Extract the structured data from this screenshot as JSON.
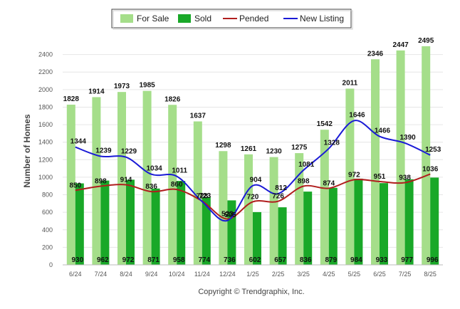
{
  "chart_data": {
    "type": "bar",
    "title": "",
    "xlabel": "",
    "ylabel": "Number of Homes",
    "ylim": [
      0,
      2600
    ],
    "yticks": [
      0,
      200,
      400,
      600,
      800,
      1000,
      1200,
      1400,
      1600,
      1800,
      2000,
      2200,
      2400
    ],
    "grid": true,
    "legend_position": "top-center",
    "categories": [
      "6/24",
      "7/24",
      "8/24",
      "9/24",
      "10/24",
      "11/24",
      "12/24",
      "1/25",
      "2/25",
      "3/25",
      "4/25",
      "5/25",
      "6/25",
      "7/25",
      "8/25"
    ],
    "series": [
      {
        "name": "For Sale",
        "kind": "bar",
        "color": "#a5de8a",
        "values": [
          1828,
          1914,
          1973,
          1985,
          1826,
          1637,
          1298,
          1261,
          1230,
          1275,
          1542,
          2011,
          2346,
          2447,
          2495
        ]
      },
      {
        "name": "Sold",
        "kind": "bar",
        "color": "#19a828",
        "values": [
          930,
          962,
          972,
          871,
          958,
          774,
          736,
          602,
          657,
          836,
          879,
          984,
          933,
          977,
          996
        ]
      },
      {
        "name": "Pended",
        "kind": "line",
        "color": "#b01e1e",
        "values": [
          850,
          898,
          914,
          836,
          860,
          728,
          523,
          720,
          726,
          898,
          874,
          972,
          951,
          938,
          1036
        ]
      },
      {
        "name": "New Listing",
        "kind": "line",
        "color": "#1a1ad6",
        "values": [
          1344,
          1239,
          1229,
          1034,
          1011,
          723,
          505,
          904,
          812,
          1081,
          1328,
          1646,
          1466,
          1390,
          1253
        ]
      }
    ]
  },
  "footer": {
    "copyright": "Copyright © Trendgraphix, Inc."
  }
}
